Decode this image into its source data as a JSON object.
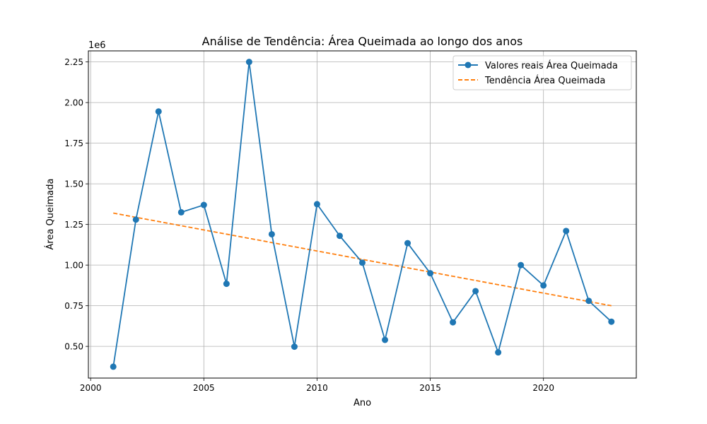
{
  "chart_data": {
    "type": "line",
    "title": "Análise de Tendência: Área Queimada ao longo dos anos",
    "xlabel": "Ano",
    "ylabel": "Área Queimada",
    "y_offset_label": "1e6",
    "y_scale": 1000000,
    "xlim": [
      1999.9,
      2024.1
    ],
    "ylim": [
      305000,
      2318000
    ],
    "x_ticks": [
      2000,
      2005,
      2010,
      2015,
      2020
    ],
    "x_tick_labels": [
      "2000",
      "2005",
      "2010",
      "2015",
      "2020"
    ],
    "y_ticks": [
      500000,
      750000,
      1000000,
      1250000,
      1500000,
      1750000,
      2000000,
      2250000
    ],
    "y_tick_labels": [
      "0.50",
      "0.75",
      "1.00",
      "1.25",
      "1.50",
      "1.75",
      "2.00",
      "2.25"
    ],
    "grid": true,
    "legend_position": "top-right",
    "series": [
      {
        "name": "Valores reais Área Queimada",
        "color": "#1f77b4",
        "style": "solid",
        "marker": "circle",
        "x": [
          2001,
          2002,
          2003,
          2004,
          2005,
          2006,
          2007,
          2008,
          2009,
          2010,
          2011,
          2012,
          2013,
          2014,
          2015,
          2016,
          2017,
          2018,
          2019,
          2020,
          2021,
          2022,
          2023
        ],
        "y": [
          375000,
          1280000,
          1945000,
          1325000,
          1370000,
          885000,
          2250000,
          1190000,
          498000,
          1375000,
          1180000,
          1015000,
          540000,
          1135000,
          950000,
          648000,
          840000,
          463000,
          1000000,
          875000,
          1210000,
          780000,
          652000
        ]
      },
      {
        "name": "Tendência Área Queimada",
        "color": "#ff7f0e",
        "style": "dashed",
        "marker": "none",
        "x": [
          2001,
          2023
        ],
        "y": [
          1320000,
          750000
        ]
      }
    ]
  }
}
